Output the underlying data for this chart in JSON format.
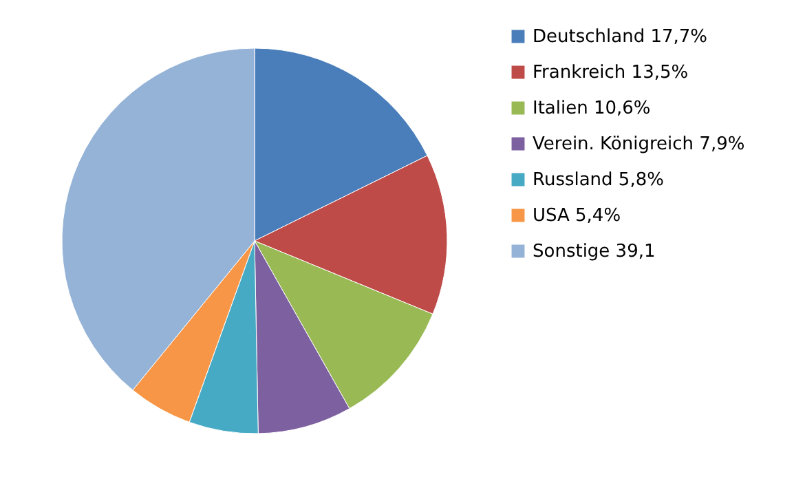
{
  "chart_data": {
    "type": "pie",
    "categories": [
      "Deutschland 17,7%",
      "Frankreich 13,5%",
      "Italien 10,6%",
      "Verein. Königreich 7,9%",
      "Russland 5,8%",
      "USA 5,4%",
      "Sonstige 39,1"
    ],
    "values": [
      17.7,
      13.5,
      10.6,
      7.9,
      5.8,
      5.4,
      39.1
    ],
    "colors": [
      "#4a7ebb",
      "#be4b48",
      "#98b954",
      "#7d60a0",
      "#46aac5",
      "#f79646",
      "#95b3d7"
    ],
    "legend": "right"
  }
}
